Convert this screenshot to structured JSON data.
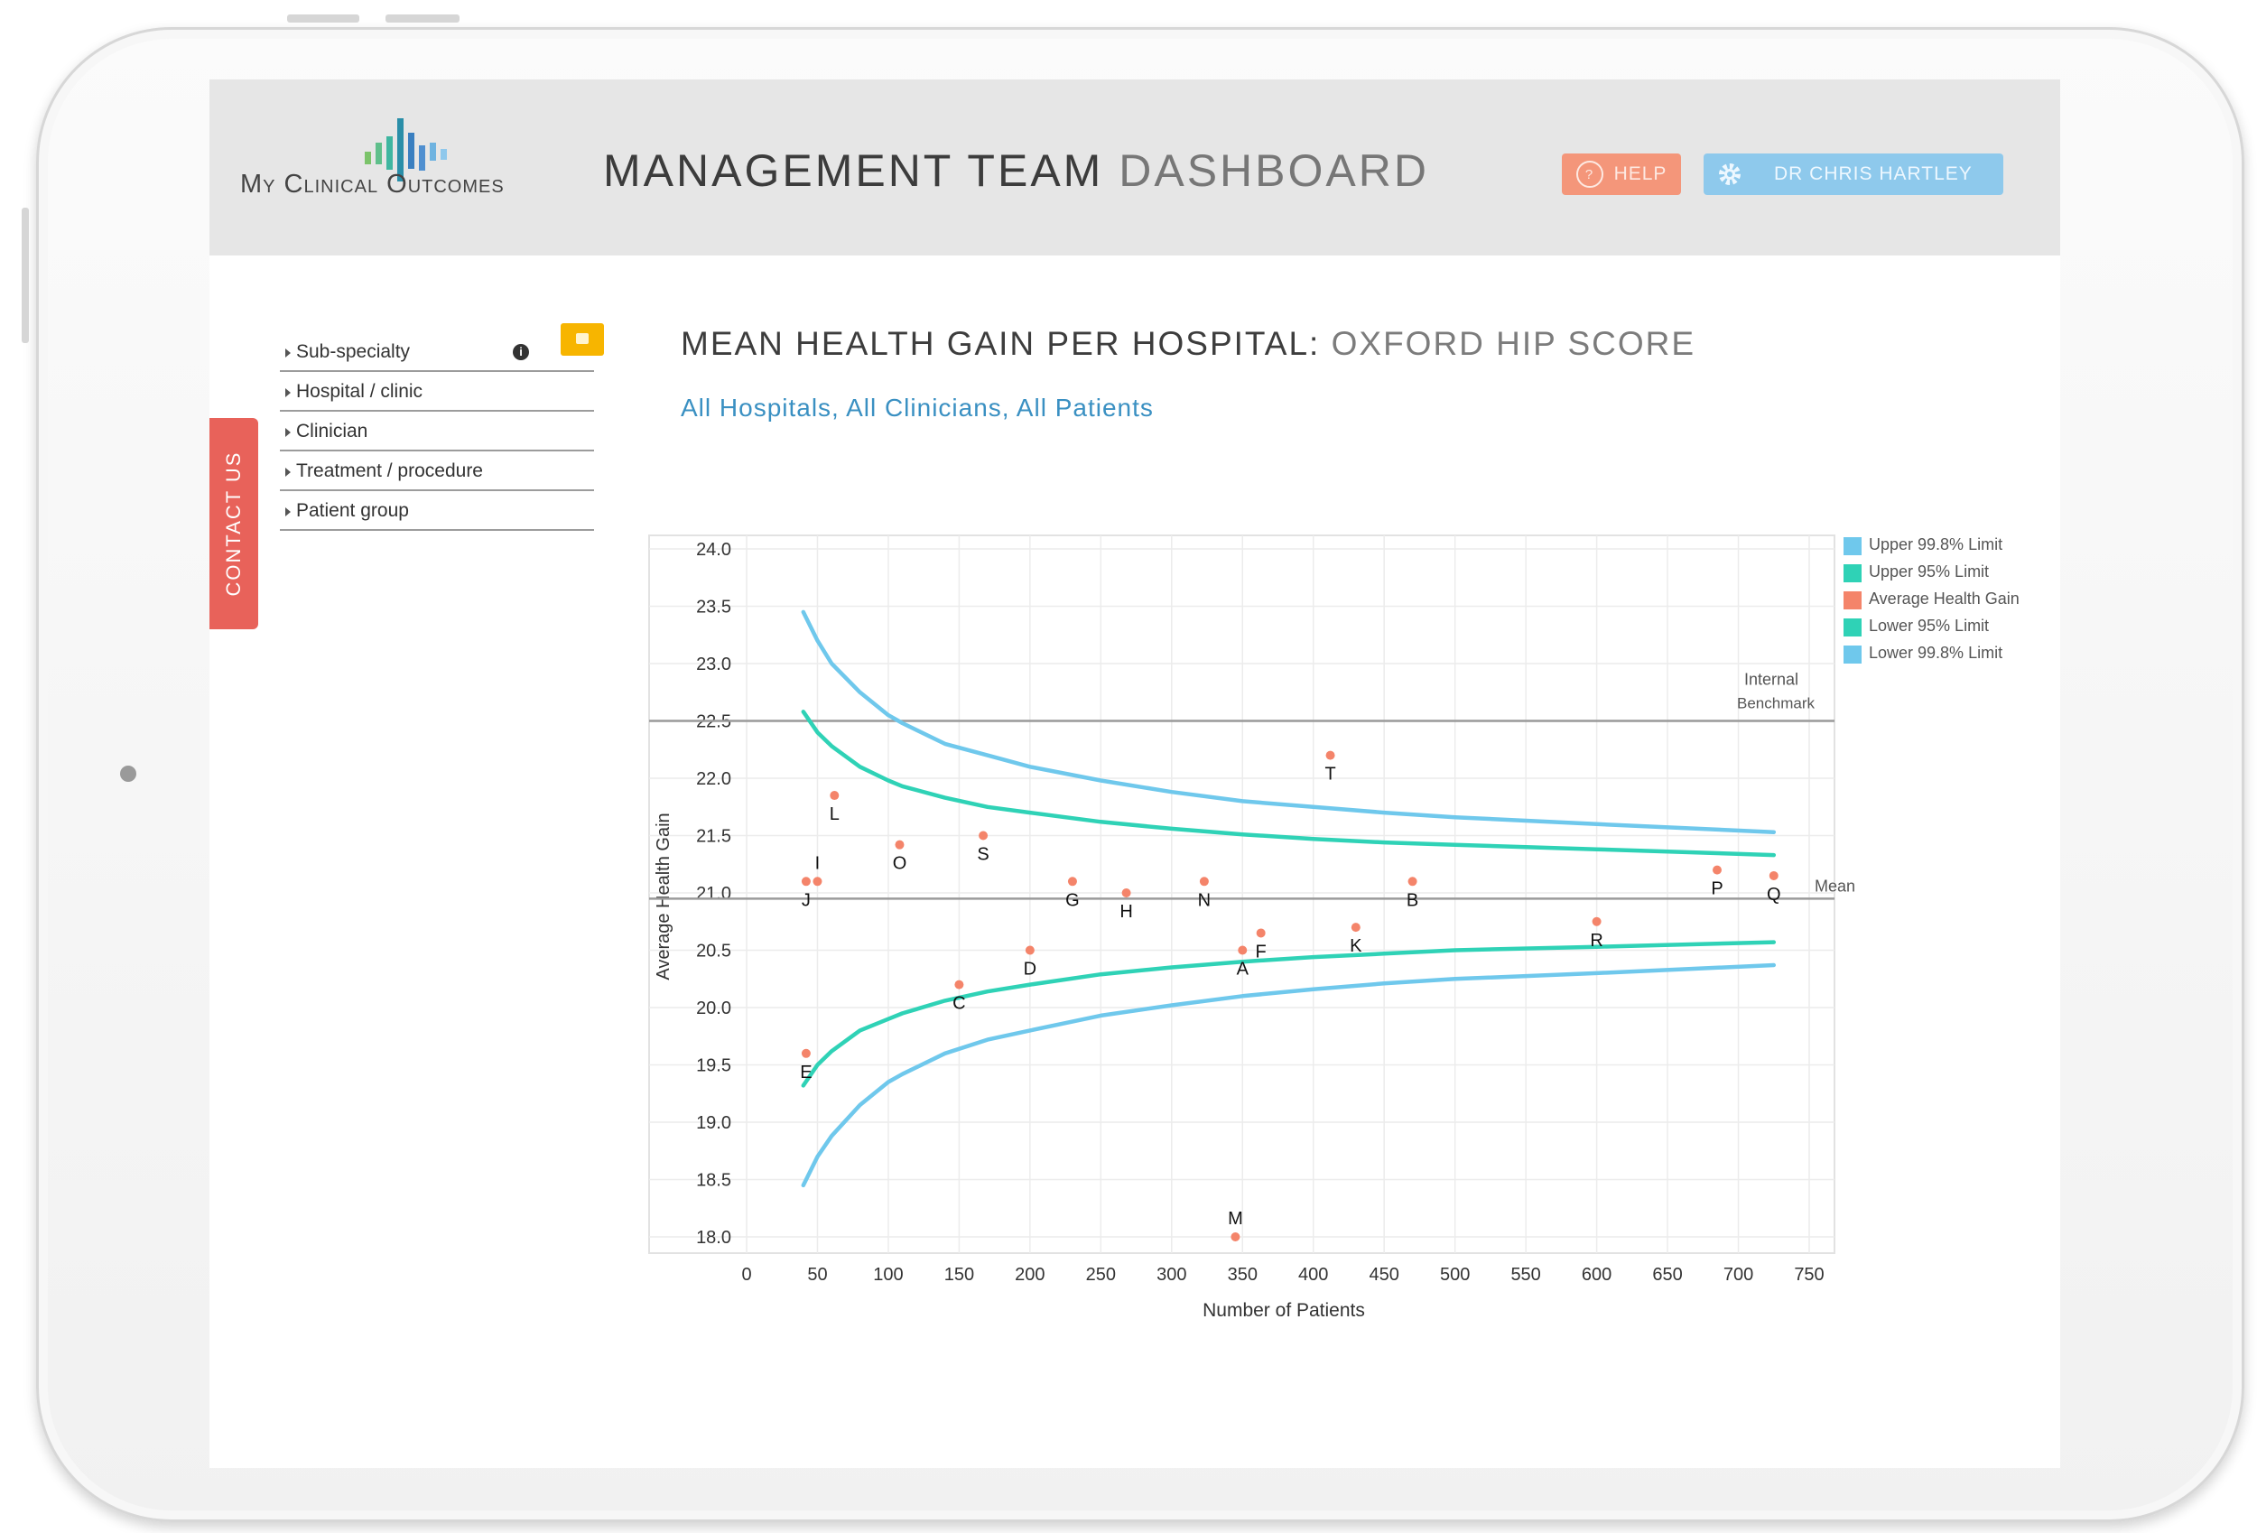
{
  "header": {
    "logo_text": "My Clinical Outcomes",
    "title_main": "MANAGEMENT TEAM",
    "title_light": "DASHBOARD",
    "help_label": "HELP",
    "user_label": "DR CHRIS HARTLEY"
  },
  "sidebar": {
    "contact_label": "CONTACT US",
    "filters": [
      {
        "label": "Sub-specialty"
      },
      {
        "label": "Hospital / clinic"
      },
      {
        "label": "Clinician"
      },
      {
        "label": "Treatment / procedure"
      },
      {
        "label": "Patient group"
      }
    ]
  },
  "colors": {
    "upper998": "#6fc8ec",
    "upper95": "#2fd2b6",
    "average": "#f4846a",
    "benchmark": "#9a9a9a"
  },
  "icons": [
    "logo-bars-icon",
    "help-icon",
    "gear-icon",
    "info-icon",
    "export-icon",
    "caret-right-icon"
  ],
  "chart_data": {
    "type": "scatter",
    "title": "MEAN HEALTH GAIN PER HOSPITAL:",
    "title_light": "OXFORD HIP SCORE",
    "subtitle": "All Hospitals, All Clinicians, All Patients",
    "xlabel": "Number of Patients",
    "ylabel": "Average Health Gain",
    "xlim": [
      0,
      750
    ],
    "ylim": [
      18.0,
      24.0
    ],
    "x_ticks": [
      "0",
      "50",
      "100",
      "150",
      "200",
      "250",
      "300",
      "350",
      "400",
      "450",
      "500",
      "550",
      "600",
      "650",
      "700",
      "750"
    ],
    "y_ticks": [
      "24.0",
      "23.5",
      "23.0",
      "22.5",
      "22.0",
      "21.5",
      "21.0",
      "20.5",
      "20.0",
      "19.5",
      "19.0",
      "18.5",
      "18.0"
    ],
    "grid": true,
    "legend_position": "right",
    "legend": [
      {
        "name": "Upper 99.8% Limit",
        "color": "#6fc8ec"
      },
      {
        "name": "Upper 95% Limit",
        "color": "#2fd2b6"
      },
      {
        "name": "Average Health Gain",
        "color": "#f4846a"
      },
      {
        "name": "Lower 95% Limit",
        "color": "#2fd2b6"
      },
      {
        "name": "Lower 99.8% Limit",
        "color": "#6fc8ec"
      }
    ],
    "reference_lines": [
      {
        "label": "Internal Benchmark",
        "y": 22.5
      },
      {
        "label": "Mean",
        "y": 20.95
      }
    ],
    "points": [
      {
        "label": "A",
        "x": 350,
        "y": 20.5
      },
      {
        "label": "B",
        "x": 470,
        "y": 21.1
      },
      {
        "label": "C",
        "x": 150,
        "y": 20.2
      },
      {
        "label": "D",
        "x": 200,
        "y": 20.5
      },
      {
        "label": "E",
        "x": 42,
        "y": 19.6
      },
      {
        "label": "F",
        "x": 363,
        "y": 20.65
      },
      {
        "label": "G",
        "x": 230,
        "y": 21.1
      },
      {
        "label": "H",
        "x": 268,
        "y": 21.0
      },
      {
        "label": "I",
        "x": 50,
        "y": 21.1
      },
      {
        "label": "J",
        "x": 42,
        "y": 21.1
      },
      {
        "label": "K",
        "x": 430,
        "y": 20.7
      },
      {
        "label": "L",
        "x": 62,
        "y": 21.85
      },
      {
        "label": "M",
        "x": 345,
        "y": 18.0
      },
      {
        "label": "N",
        "x": 323,
        "y": 21.1
      },
      {
        "label": "O",
        "x": 108,
        "y": 21.42
      },
      {
        "label": "P",
        "x": 685,
        "y": 21.2
      },
      {
        "label": "Q",
        "x": 725,
        "y": 21.15
      },
      {
        "label": "R",
        "x": 600,
        "y": 20.75
      },
      {
        "label": "S",
        "x": 167,
        "y": 21.5
      },
      {
        "label": "T",
        "x": 412,
        "y": 22.2
      }
    ],
    "series": [
      {
        "name": "Upper 99.8% Limit",
        "x": [
          40,
          50,
          60,
          80,
          100,
          110,
          140,
          170,
          200,
          250,
          300,
          350,
          400,
          450,
          500,
          600,
          725
        ],
        "y": [
          23.45,
          23.2,
          23.0,
          22.75,
          22.55,
          22.48,
          22.3,
          22.2,
          22.1,
          21.98,
          21.88,
          21.8,
          21.75,
          21.7,
          21.66,
          21.6,
          21.53
        ]
      },
      {
        "name": "Upper 95% Limit",
        "x": [
          40,
          50,
          60,
          80,
          100,
          110,
          140,
          170,
          200,
          250,
          300,
          350,
          400,
          450,
          500,
          600,
          725
        ],
        "y": [
          22.58,
          22.4,
          22.28,
          22.1,
          21.98,
          21.93,
          21.83,
          21.75,
          21.7,
          21.62,
          21.56,
          21.51,
          21.47,
          21.44,
          21.42,
          21.38,
          21.33
        ]
      },
      {
        "name": "Lower 95% Limit",
        "x": [
          40,
          50,
          60,
          80,
          100,
          110,
          140,
          170,
          200,
          250,
          300,
          350,
          400,
          450,
          500,
          600,
          725
        ],
        "y": [
          19.32,
          19.5,
          19.62,
          19.8,
          19.9,
          19.95,
          20.06,
          20.14,
          20.2,
          20.29,
          20.35,
          20.4,
          20.44,
          20.47,
          20.5,
          20.53,
          20.57
        ]
      },
      {
        "name": "Lower 99.8% Limit",
        "x": [
          40,
          50,
          60,
          80,
          100,
          110,
          140,
          170,
          200,
          250,
          300,
          350,
          400,
          450,
          500,
          600,
          725
        ],
        "y": [
          18.45,
          18.7,
          18.88,
          19.15,
          19.35,
          19.42,
          19.6,
          19.72,
          19.8,
          19.93,
          20.02,
          20.1,
          20.16,
          20.21,
          20.25,
          20.3,
          20.37
        ]
      }
    ]
  }
}
